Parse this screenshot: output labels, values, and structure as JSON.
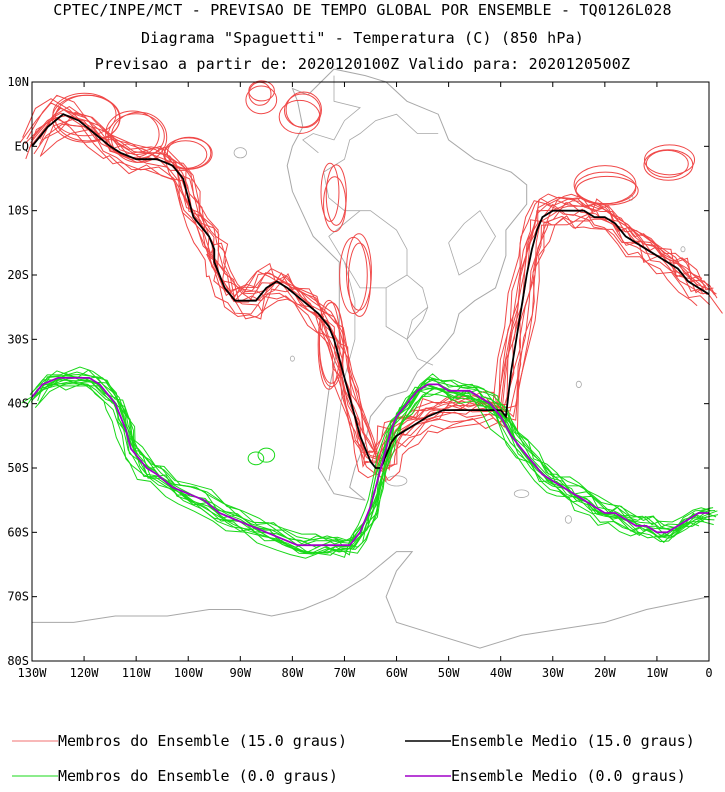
{
  "chart_data": {
    "type": "line",
    "title": "CPTEC/INPE/MCT - PREVISAO DE TEMPO GLOBAL POR ENSEMBLE - TQ0126L028",
    "subtitle": "Diagrama \"Spaguetti\" - Temperatura (C) (850 hPa)",
    "forecast_info": "Previsao a partir de: 2020120100Z  Valido para: 2020120500Z",
    "xlim": [
      -130,
      0
    ],
    "ylim": [
      -80,
      10
    ],
    "x_ticks": [
      {
        "value": -130,
        "label": "130W"
      },
      {
        "value": -120,
        "label": "120W"
      },
      {
        "value": -110,
        "label": "110W"
      },
      {
        "value": -100,
        "label": "100W"
      },
      {
        "value": -90,
        "label": "90W"
      },
      {
        "value": -80,
        "label": "80W"
      },
      {
        "value": -70,
        "label": "70W"
      },
      {
        "value": -60,
        "label": "60W"
      },
      {
        "value": -50,
        "label": "50W"
      },
      {
        "value": -40,
        "label": "40W"
      },
      {
        "value": -30,
        "label": "30W"
      },
      {
        "value": -20,
        "label": "20W"
      },
      {
        "value": -10,
        "label": "10W"
      },
      {
        "value": 0,
        "label": "0"
      }
    ],
    "y_ticks": [
      {
        "value": 10,
        "label": "10N"
      },
      {
        "value": 0,
        "label": "EQ"
      },
      {
        "value": -10,
        "label": "10S"
      },
      {
        "value": -20,
        "label": "20S"
      },
      {
        "value": -30,
        "label": "30S"
      },
      {
        "value": -40,
        "label": "40S"
      },
      {
        "value": -50,
        "label": "50S"
      },
      {
        "value": -60,
        "label": "60S"
      },
      {
        "value": -70,
        "label": "70S"
      },
      {
        "value": -80,
        "label": "80S"
      }
    ],
    "series": [
      {
        "name": "Ensemble Medio (15.0 graus)",
        "color": "#000000",
        "points": [
          [
            -130,
            0
          ],
          [
            -127,
            3
          ],
          [
            -124,
            5
          ],
          [
            -121,
            4
          ],
          [
            -118,
            2
          ],
          [
            -115,
            0
          ],
          [
            -113,
            -1
          ],
          [
            -110,
            -2
          ],
          [
            -106,
            -2
          ],
          [
            -103,
            -3
          ],
          [
            -101,
            -5
          ],
          [
            -100,
            -8
          ],
          [
            -99,
            -11
          ],
          [
            -97,
            -13
          ],
          [
            -96,
            -14
          ],
          [
            -95,
            -16
          ],
          [
            -95,
            -18
          ],
          [
            -94,
            -20
          ],
          [
            -93,
            -22
          ],
          [
            -91,
            -24
          ],
          [
            -89,
            -24
          ],
          [
            -87,
            -24
          ],
          [
            -85,
            -22
          ],
          [
            -83,
            -21
          ],
          [
            -81,
            -22
          ],
          [
            -78,
            -24
          ],
          [
            -75,
            -26
          ],
          [
            -73,
            -28
          ],
          [
            -72,
            -30
          ],
          [
            -71,
            -33
          ],
          [
            -70,
            -36
          ],
          [
            -69,
            -39
          ],
          [
            -68,
            -42
          ],
          [
            -67,
            -45
          ],
          [
            -66,
            -47
          ],
          [
            -65,
            -49
          ],
          [
            -64,
            -50
          ],
          [
            -63,
            -50
          ],
          [
            -62,
            -48
          ],
          [
            -61,
            -46
          ],
          [
            -60,
            -45
          ],
          [
            -58,
            -44
          ],
          [
            -56,
            -43
          ],
          [
            -54,
            -42
          ],
          [
            -51,
            -41
          ],
          [
            -48,
            -41
          ],
          [
            -45,
            -41
          ],
          [
            -42,
            -41
          ],
          [
            -40,
            -41
          ],
          [
            -39,
            -42
          ],
          [
            -38,
            -35
          ],
          [
            -37,
            -30
          ],
          [
            -36,
            -25
          ],
          [
            -35,
            -20
          ],
          [
            -34,
            -16
          ],
          [
            -33,
            -13
          ],
          [
            -32,
            -11
          ],
          [
            -30,
            -10
          ],
          [
            -28,
            -10
          ],
          [
            -26,
            -10
          ],
          [
            -24,
            -10
          ],
          [
            -22,
            -11
          ],
          [
            -20,
            -11
          ],
          [
            -18,
            -12
          ],
          [
            -16,
            -14
          ],
          [
            -14,
            -15
          ],
          [
            -12,
            -16
          ],
          [
            -10,
            -17
          ],
          [
            -8,
            -18
          ],
          [
            -6,
            -19
          ],
          [
            -4,
            -21
          ],
          [
            -2,
            -22
          ],
          [
            0,
            -23
          ]
        ]
      },
      {
        "name": "Ensemble Medio (0.0 graus)",
        "color": "#a000c8",
        "points": [
          [
            -130,
            -39
          ],
          [
            -128,
            -37
          ],
          [
            -125,
            -36
          ],
          [
            -122,
            -36
          ],
          [
            -119,
            -36
          ],
          [
            -117,
            -37
          ],
          [
            -115,
            -39
          ],
          [
            -114,
            -40
          ],
          [
            -113,
            -42
          ],
          [
            -112,
            -44
          ],
          [
            -111,
            -47
          ],
          [
            -110,
            -48
          ],
          [
            -108,
            -50
          ],
          [
            -106,
            -51
          ],
          [
            -103,
            -53
          ],
          [
            -100,
            -54
          ],
          [
            -97,
            -55
          ],
          [
            -94,
            -57
          ],
          [
            -91,
            -58
          ],
          [
            -88,
            -59
          ],
          [
            -85,
            -60
          ],
          [
            -82,
            -61
          ],
          [
            -79,
            -62
          ],
          [
            -76,
            -62
          ],
          [
            -73,
            -62
          ],
          [
            -71,
            -62
          ],
          [
            -69,
            -62
          ],
          [
            -67,
            -60
          ],
          [
            -66,
            -58
          ],
          [
            -65,
            -56
          ],
          [
            -64,
            -53
          ],
          [
            -63,
            -50
          ],
          [
            -62,
            -47
          ],
          [
            -61,
            -44
          ],
          [
            -60,
            -42
          ],
          [
            -58,
            -40
          ],
          [
            -56,
            -38
          ],
          [
            -54,
            -37
          ],
          [
            -52,
            -37
          ],
          [
            -50,
            -38
          ],
          [
            -48,
            -38
          ],
          [
            -46,
            -38
          ],
          [
            -44,
            -39
          ],
          [
            -42,
            -40
          ],
          [
            -40,
            -42
          ],
          [
            -38,
            -45
          ],
          [
            -36,
            -47
          ],
          [
            -34,
            -49
          ],
          [
            -32,
            -51
          ],
          [
            -30,
            -52
          ],
          [
            -28,
            -53
          ],
          [
            -26,
            -54
          ],
          [
            -24,
            -55
          ],
          [
            -22,
            -56
          ],
          [
            -20,
            -57
          ],
          [
            -18,
            -57
          ],
          [
            -16,
            -58
          ],
          [
            -14,
            -59
          ],
          [
            -12,
            -59
          ],
          [
            -10,
            -60
          ],
          [
            -8,
            -60
          ],
          [
            -6,
            -59
          ],
          [
            -4,
            -58
          ],
          [
            -2,
            -57
          ],
          [
            0,
            -57
          ]
        ]
      }
    ],
    "member_series_15": {
      "name": "Membros do Ensemble (15.0 graus)",
      "color": "#f04848",
      "count": 14
    },
    "member_series_0": {
      "name": "Membros do Ensemble (0.0 graus)",
      "color": "#18d818",
      "count": 14
    },
    "legend": [
      {
        "label": "Membros do Ensemble (15.0 graus)",
        "color": "#f07070"
      },
      {
        "label": "Ensemble Medio (15.0 graus)",
        "color": "#000000"
      },
      {
        "label": "Membros do Ensemble (0.0 graus)",
        "color": "#18d818"
      },
      {
        "label": "Ensemble Medio (0.0 graus)",
        "color": "#a000c8"
      }
    ],
    "map_color": "#a8a8a8"
  }
}
